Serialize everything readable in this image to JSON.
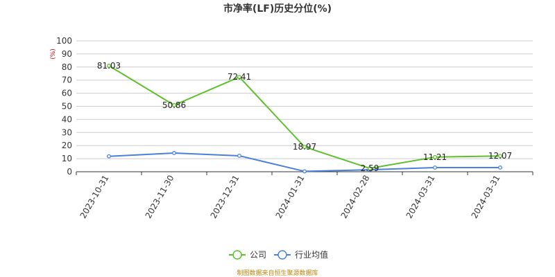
{
  "chart_data": {
    "type": "line",
    "title": "市净率(LF)历史分位(%)",
    "unit_label": "(%)",
    "categories": [
      "2023-10-31",
      "2023-11-30",
      "2023-12-31",
      "2024-01-31",
      "2024-02-28",
      "2024-03-31",
      "2024-03-31"
    ],
    "ylim": [
      0,
      100
    ],
    "yticks": [
      0,
      10,
      20,
      30,
      40,
      50,
      60,
      70,
      80,
      90,
      100
    ],
    "grid": true,
    "legend_position": "bottom",
    "series": [
      {
        "name": "公司",
        "color": "#5cc02a",
        "values": [
          81.03,
          50.86,
          72.41,
          18.97,
          2.59,
          11.21,
          12.07
        ],
        "data_labels": [
          "81.03",
          "50.86",
          "72.41",
          "18.97",
          "2.59",
          "11.21",
          "12.07"
        ]
      },
      {
        "name": "行业均值",
        "color": "#4a7fdc",
        "values": [
          11.8,
          14.3,
          12.2,
          0.3,
          1.5,
          3.2,
          3.2
        ]
      }
    ]
  },
  "source_text": "制图数据来自恒生聚源数据库"
}
